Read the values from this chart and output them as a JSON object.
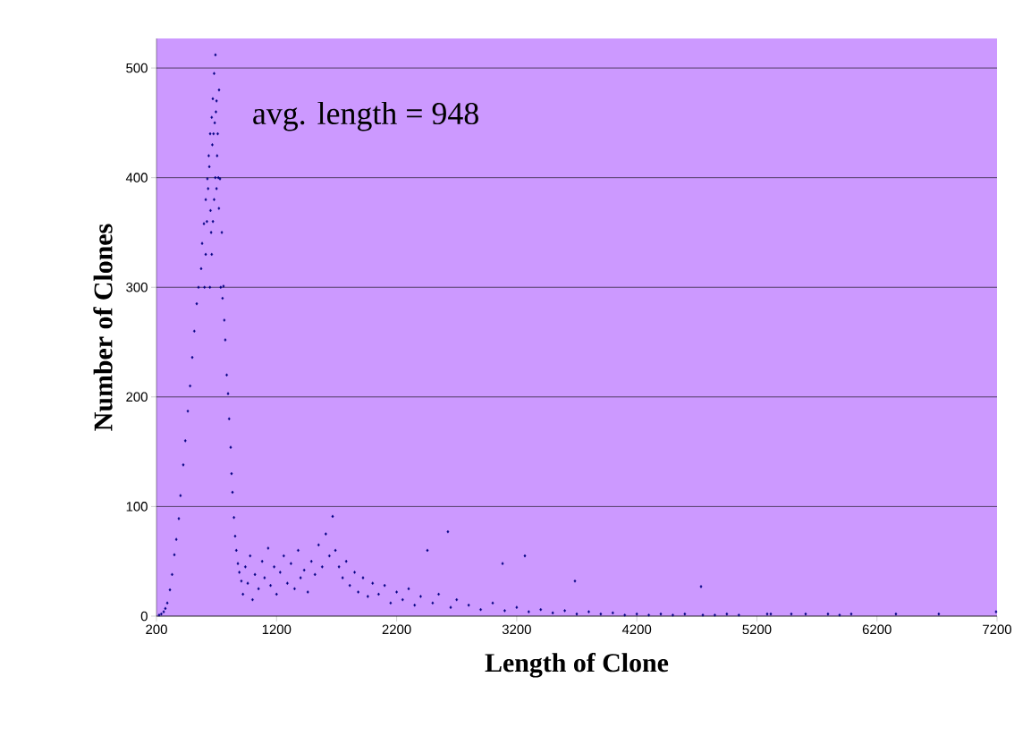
{
  "chart_data": {
    "type": "scatter",
    "xlabel": "Length of Clone",
    "ylabel": "Number of Clones",
    "annotations": [
      "avg. length = 948"
    ],
    "xlim": [
      200,
      7200
    ],
    "ylim": [
      0,
      527
    ],
    "xticks": [
      200,
      1200,
      2200,
      3200,
      4200,
      5200,
      6200,
      7200
    ],
    "yticks": [
      0,
      100,
      200,
      300,
      400,
      500
    ],
    "grid": "y",
    "marker": "diamond",
    "series": [
      {
        "color": "#000080",
        "x": [
          222,
          240,
          260,
          274,
          290,
          312,
          330,
          349,
          365,
          386,
          400,
          423,
          440,
          461,
          480,
          498,
          515,
          535,
          550,
          572,
          580,
          595,
          610,
          624,
          635,
          647,
          660,
          669,
          680,
          691,
          600,
          610,
          620,
          630,
          640,
          650,
          655,
          665,
          675,
          685,
          695,
          700,
          705,
          700,
          690,
          680,
          670,
          660,
          645,
          710,
          715,
          720,
          721,
          729,
          735,
          744,
          750,
          758,
          765,
          773,
          785,
          796,
          805,
          818,
          825,
          833,
          845,
          855,
          865,
          878,
          890,
          907,
          920,
          940,
          960,
          980,
          1000,
          1020,
          1050,
          1080,
          1100,
          1130,
          1150,
          1180,
          1200,
          1230,
          1260,
          1290,
          1320,
          1350,
          1380,
          1400,
          1430,
          1460,
          1490,
          1520,
          1550,
          1580,
          1610,
          1640,
          1667,
          1690,
          1720,
          1750,
          1780,
          1810,
          1850,
          1880,
          1920,
          1960,
          2000,
          2050,
          2100,
          2150,
          2200,
          2250,
          2300,
          2350,
          2400,
          2456,
          2500,
          2550,
          2627,
          2650,
          2700,
          2800,
          2900,
          3000,
          3082,
          3100,
          3200,
          3268,
          3300,
          3400,
          3500,
          3600,
          3685,
          3700,
          3800,
          3900,
          4000,
          4100,
          4200,
          4300,
          4400,
          4500,
          4600,
          4735,
          4750,
          4850,
          4950,
          5050,
          5286,
          5316,
          5487,
          5606,
          5792,
          5889,
          5986,
          6358,
          6715,
          7192
        ],
        "values": [
          1,
          2,
          4,
          7,
          12,
          24,
          38,
          56,
          70,
          89,
          110,
          138,
          160,
          187,
          210,
          236,
          260,
          285,
          300,
          317,
          340,
          358,
          380,
          399,
          420,
          440,
          455,
          472,
          495,
          512,
          300,
          330,
          360,
          390,
          410,
          370,
          350,
          430,
          440,
          450,
          460,
          470,
          420,
          390,
          400,
          380,
          360,
          330,
          300,
          440,
          400,
          372,
          480,
          399,
          300,
          350,
          290,
          301,
          270,
          252,
          220,
          203,
          180,
          154,
          130,
          113,
          90,
          73,
          60,
          48,
          40,
          32,
          20,
          45,
          30,
          55,
          15,
          38,
          25,
          50,
          35,
          62,
          28,
          45,
          20,
          40,
          55,
          30,
          48,
          25,
          60,
          35,
          42,
          22,
          50,
          38,
          65,
          45,
          75,
          55,
          91,
          60,
          45,
          35,
          50,
          28,
          40,
          22,
          35,
          18,
          30,
          20,
          28,
          12,
          22,
          15,
          25,
          10,
          18,
          60,
          12,
          20,
          77,
          8,
          15,
          10,
          6,
          12,
          48,
          5,
          8,
          55,
          4,
          6,
          3,
          5,
          32,
          2,
          4,
          2,
          3,
          1,
          2,
          1,
          2,
          1,
          2,
          27,
          1,
          1,
          2,
          1,
          2,
          2,
          2,
          2,
          2,
          1,
          2,
          2,
          2,
          4
        ]
      }
    ]
  }
}
